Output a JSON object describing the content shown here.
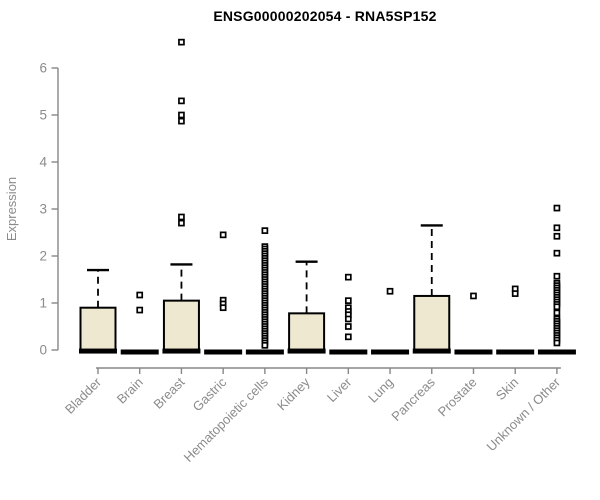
{
  "title": "ENSG00000202054 - RNA5SP152",
  "chart_data": {
    "type": "boxplot",
    "title": "ENSG00000202054 - RNA5SP152",
    "ylabel": "Expression",
    "xlabel": "",
    "ylim": [
      0,
      6.6
    ],
    "yticks": [
      0,
      1,
      2,
      3,
      4,
      5,
      6
    ],
    "grid": false,
    "legend": false,
    "box_fill_color": "#EEE8D1",
    "box_border_color": "#000000",
    "median_color": "#000000",
    "axis_color": "#878787",
    "tick_label_color": "#8b8b8b",
    "title_color": "#000000",
    "categories": [
      "Bladder",
      "Brain",
      "Breast",
      "Gastric",
      "Hematopoietic cells",
      "Kidney",
      "Liver",
      "Lung",
      "Pancreas",
      "Prostate",
      "Skin",
      "Unknown / Other"
    ],
    "series": [
      {
        "label": "Bladder",
        "q1": 0,
        "median": 0.02,
        "q3": 0.9,
        "whisker_low": 0,
        "whisker_high": 1.7,
        "outliers": []
      },
      {
        "label": "Brain",
        "q1": 0,
        "median": 0,
        "q3": 0,
        "whisker_low": 0,
        "whisker_high": 0,
        "outliers": [
          1.17,
          0.85
        ]
      },
      {
        "label": "Breast",
        "q1": 0,
        "median": 0.02,
        "q3": 1.05,
        "whisker_low": 0,
        "whisker_high": 1.82,
        "outliers": [
          6.55,
          5.3,
          5.0,
          4.87,
          2.83,
          2.7
        ]
      },
      {
        "label": "Gastric",
        "q1": 0,
        "median": 0,
        "q3": 0,
        "whisker_low": 0,
        "whisker_high": 0,
        "outliers": [
          2.45,
          1.06,
          0.98,
          0.9
        ]
      },
      {
        "label": "Hematopoietic cells",
        "q1": 0,
        "median": 0,
        "q3": 0,
        "whisker_low": 0,
        "whisker_high": 0,
        "outliers": [
          2.54,
          2.2,
          2.15,
          2.1,
          2.05,
          2.0,
          1.95,
          1.9,
          1.85,
          1.8,
          1.75,
          1.7,
          1.65,
          1.6,
          1.55,
          1.5,
          1.45,
          1.4,
          1.35,
          1.3,
          1.25,
          1.2,
          1.15,
          1.1,
          1.05,
          1.0,
          0.95,
          0.9,
          0.85,
          0.8,
          0.75,
          0.7,
          0.65,
          0.6,
          0.55,
          0.5,
          0.45,
          0.4,
          0.35,
          0.3,
          0.25,
          0.2,
          0.15,
          0.1
        ]
      },
      {
        "label": "Kidney",
        "q1": 0,
        "median": 0.02,
        "q3": 0.78,
        "whisker_low": 0,
        "whisker_high": 1.88,
        "outliers": []
      },
      {
        "label": "Liver",
        "q1": 0,
        "median": 0,
        "q3": 0,
        "whisker_low": 0,
        "whisker_high": 0,
        "outliers": [
          1.55,
          1.05,
          0.9,
          0.82,
          0.75,
          0.66,
          0.5,
          0.28
        ]
      },
      {
        "label": "Lung",
        "q1": 0,
        "median": 0,
        "q3": 0,
        "whisker_low": 0,
        "whisker_high": 0,
        "outliers": [
          1.25
        ]
      },
      {
        "label": "Pancreas",
        "q1": 0,
        "median": 0.02,
        "q3": 1.15,
        "whisker_low": 0,
        "whisker_high": 2.65,
        "outliers": []
      },
      {
        "label": "Prostate",
        "q1": 0,
        "median": 0,
        "q3": 0,
        "whisker_low": 0,
        "whisker_high": 0,
        "outliers": [
          1.15
        ]
      },
      {
        "label": "Skin",
        "q1": 0,
        "median": 0,
        "q3": 0,
        "whisker_low": 0,
        "whisker_high": 0,
        "outliers": [
          1.3,
          1.2
        ]
      },
      {
        "label": "Unknown / Other",
        "q1": 0,
        "median": 0,
        "q3": 0,
        "whisker_low": 0,
        "whisker_high": 0,
        "outliers": [
          3.02,
          2.6,
          2.42,
          2.06,
          1.57,
          1.42,
          1.37,
          1.32,
          1.27,
          1.22,
          1.17,
          1.12,
          1.07,
          1.02,
          0.97,
          0.92,
          0.79,
          0.66,
          0.61,
          0.56,
          0.51,
          0.46,
          0.41,
          0.36,
          0.31,
          0.26,
          0.21,
          0.15
        ]
      }
    ]
  }
}
